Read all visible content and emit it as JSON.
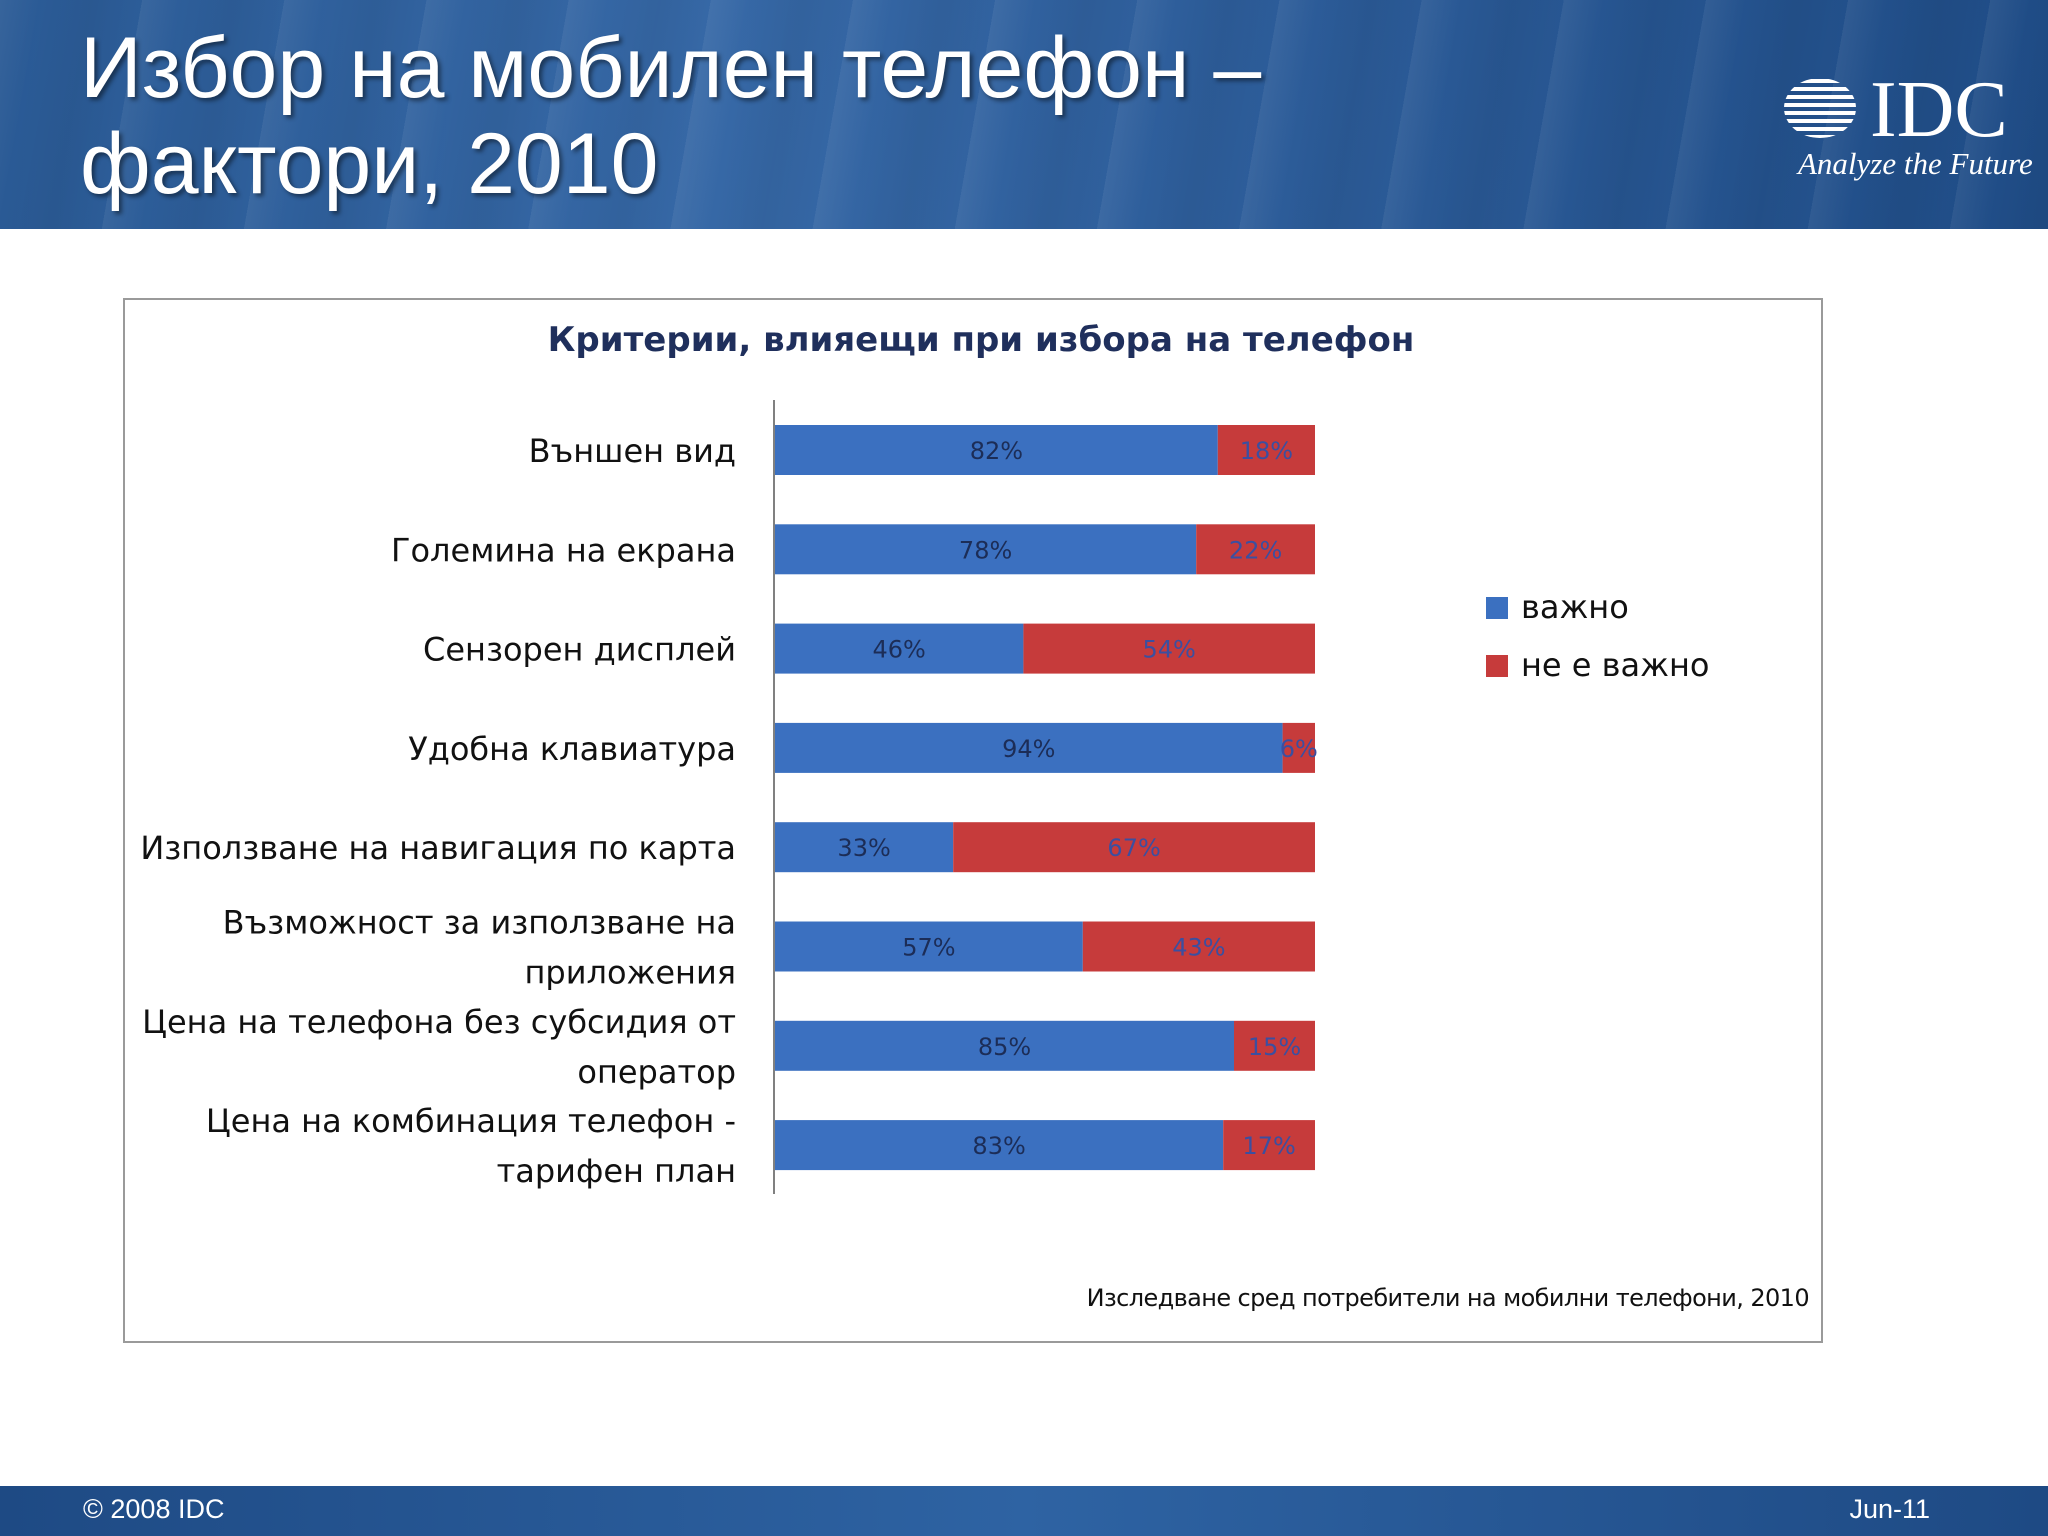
{
  "header": {
    "title_line1": "Избор на мобилен телефон –",
    "title_line2": "фактори, 2010",
    "logo_text": "IDC",
    "logo_tagline": "Analyze the Future"
  },
  "footer": {
    "copyright": "© 2008 IDC",
    "date": "Jun-11"
  },
  "colors": {
    "important": "#3b70c0",
    "not_important": "#c63b3b"
  },
  "chart_data": {
    "type": "bar",
    "orientation": "horizontal",
    "stacked": true,
    "title": "Критерии, влияещи при избора на телефон",
    "source_note": "Изследване сред потребители на мобилни телефони, 2010",
    "categories": [
      [
        "Външен вид"
      ],
      [
        "Големина на екрана"
      ],
      [
        "Сензорен дисплей"
      ],
      [
        "Удобна клавиатура"
      ],
      [
        "Използване на навигация по карта"
      ],
      [
        "Възможност за използване на",
        "приложения"
      ],
      [
        "Цена на телефона без субсидия от",
        "оператор"
      ],
      [
        "Цена на комбинация телефон -",
        "тарифен план"
      ]
    ],
    "series": [
      {
        "name": "важно",
        "values": [
          82,
          78,
          46,
          94,
          33,
          57,
          85,
          83
        ],
        "labels": [
          "82%",
          "78%",
          "46%",
          "94%",
          "33%",
          "57%",
          "85%",
          "83%"
        ]
      },
      {
        "name": "не е важно",
        "values": [
          18,
          22,
          54,
          6,
          67,
          43,
          15,
          17
        ],
        "labels": [
          "18%",
          "22%",
          "54%",
          "6%",
          "67%",
          "43%",
          "15%",
          "17%"
        ]
      }
    ],
    "xlim": [
      0,
      100
    ],
    "legend": "right",
    "grid": false
  }
}
